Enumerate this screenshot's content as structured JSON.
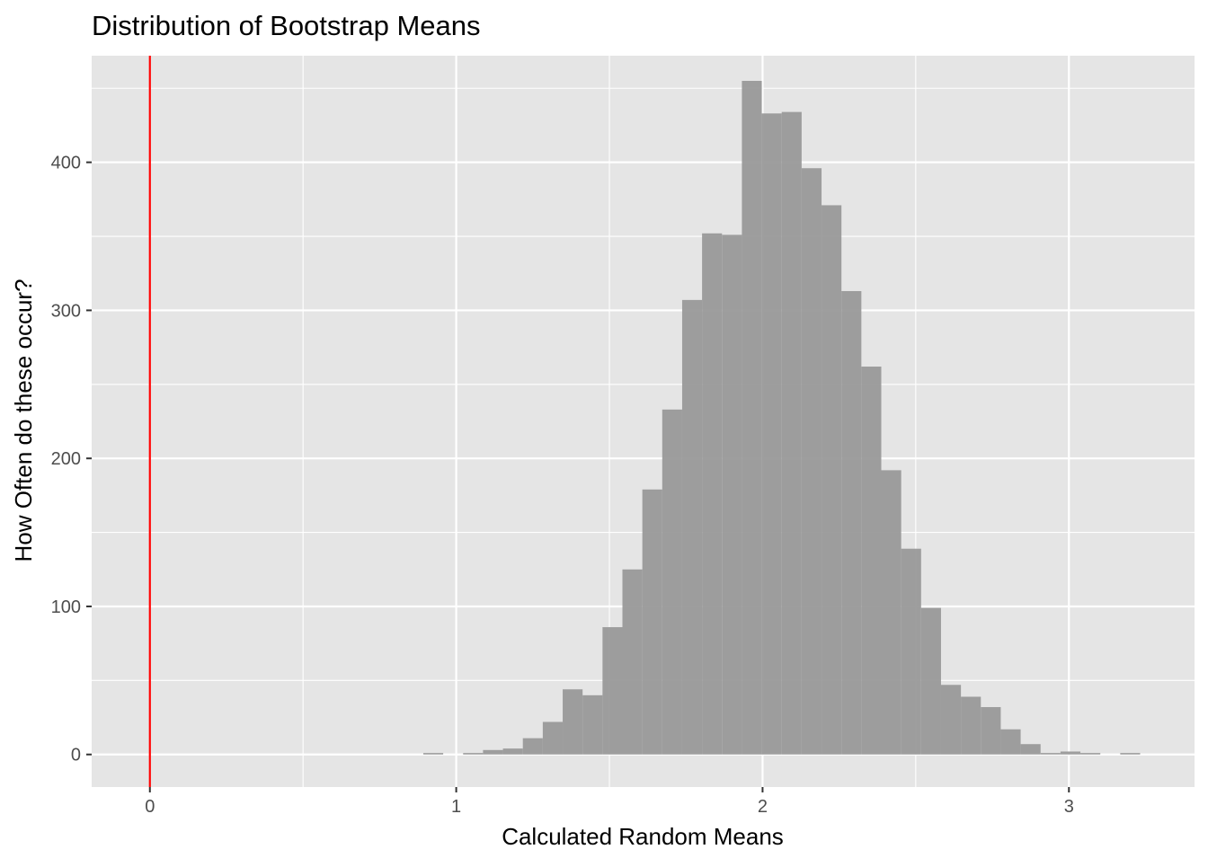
{
  "chart_data": {
    "type": "histogram",
    "title": "Distribution of Bootstrap Means",
    "xlabel": "Calculated Random Means",
    "ylabel": "How Often do these occur?",
    "xlim": [
      -0.19,
      3.41
    ],
    "ylim": [
      -22,
      472
    ],
    "x_ticks": [
      {
        "value": 0,
        "label": "0"
      },
      {
        "value": 1,
        "label": "1"
      },
      {
        "value": 2,
        "label": "2"
      },
      {
        "value": 3,
        "label": "3"
      }
    ],
    "y_ticks": [
      {
        "value": 0,
        "label": "0"
      },
      {
        "value": 100,
        "label": "100"
      },
      {
        "value": 200,
        "label": "200"
      },
      {
        "value": 300,
        "label": "300"
      },
      {
        "value": 400,
        "label": "400"
      }
    ],
    "x_minor_grid": [
      0.5,
      1.5,
      2.5
    ],
    "y_minor_grid": [
      50,
      150,
      250,
      350,
      450
    ],
    "grid": true,
    "bar_color": "#999999",
    "panel_color": "#e5e5e5",
    "grid_color": "#ffffff",
    "reference_line": {
      "x": 0,
      "color": "#ff0000"
    },
    "bins": [
      {
        "x0": 0.8925,
        "x1": 0.9575,
        "count": 1
      },
      {
        "x0": 1.0225,
        "x1": 1.0875,
        "count": 1
      },
      {
        "x0": 1.0875,
        "x1": 1.1525,
        "count": 3
      },
      {
        "x0": 1.1525,
        "x1": 1.2175,
        "count": 4
      },
      {
        "x0": 1.2175,
        "x1": 1.2825,
        "count": 11
      },
      {
        "x0": 1.2825,
        "x1": 1.3475,
        "count": 22
      },
      {
        "x0": 1.3475,
        "x1": 1.4125,
        "count": 44
      },
      {
        "x0": 1.4125,
        "x1": 1.4775,
        "count": 40
      },
      {
        "x0": 1.4775,
        "x1": 1.5425,
        "count": 86
      },
      {
        "x0": 1.5425,
        "x1": 1.6075,
        "count": 125
      },
      {
        "x0": 1.6075,
        "x1": 1.6725,
        "count": 179
      },
      {
        "x0": 1.6725,
        "x1": 1.7375,
        "count": 233
      },
      {
        "x0": 1.7375,
        "x1": 1.8025,
        "count": 307
      },
      {
        "x0": 1.8025,
        "x1": 1.8675,
        "count": 352
      },
      {
        "x0": 1.8675,
        "x1": 1.9325,
        "count": 351
      },
      {
        "x0": 1.9325,
        "x1": 1.9975,
        "count": 455
      },
      {
        "x0": 1.9975,
        "x1": 2.0625,
        "count": 433
      },
      {
        "x0": 2.0625,
        "x1": 2.1275,
        "count": 434
      },
      {
        "x0": 2.1275,
        "x1": 2.1925,
        "count": 396
      },
      {
        "x0": 2.1925,
        "x1": 2.2575,
        "count": 371
      },
      {
        "x0": 2.2575,
        "x1": 2.3225,
        "count": 313
      },
      {
        "x0": 2.3225,
        "x1": 2.3875,
        "count": 262
      },
      {
        "x0": 2.3875,
        "x1": 2.4525,
        "count": 192
      },
      {
        "x0": 2.4525,
        "x1": 2.5175,
        "count": 139
      },
      {
        "x0": 2.5175,
        "x1": 2.5825,
        "count": 99
      },
      {
        "x0": 2.5825,
        "x1": 2.6475,
        "count": 47
      },
      {
        "x0": 2.6475,
        "x1": 2.7125,
        "count": 39
      },
      {
        "x0": 2.7125,
        "x1": 2.7775,
        "count": 32
      },
      {
        "x0": 2.7775,
        "x1": 2.8425,
        "count": 17
      },
      {
        "x0": 2.8425,
        "x1": 2.9075,
        "count": 7
      },
      {
        "x0": 2.9075,
        "x1": 2.9725,
        "count": 1
      },
      {
        "x0": 2.9725,
        "x1": 3.0375,
        "count": 2
      },
      {
        "x0": 3.0375,
        "x1": 3.1025,
        "count": 1
      },
      {
        "x0": 3.1675,
        "x1": 3.2325,
        "count": 1
      }
    ]
  }
}
